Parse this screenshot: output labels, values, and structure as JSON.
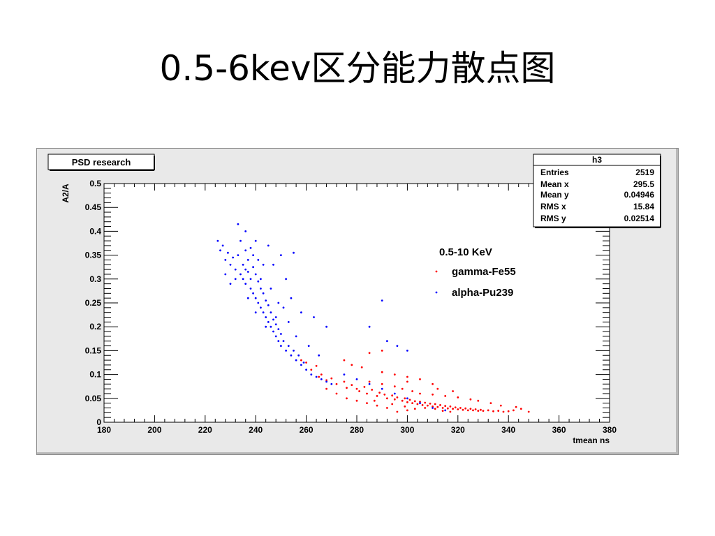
{
  "slide_title": "0.5-6kev区分能力散点图",
  "chart_data": {
    "type": "scatter",
    "title": "PSD research",
    "xlabel": "tmean ns",
    "ylabel": "A2/A",
    "xlim": [
      180,
      380
    ],
    "ylim": [
      0,
      0.5
    ],
    "x_ticks": [
      "180",
      "200",
      "220",
      "240",
      "260",
      "280",
      "300",
      "320",
      "340",
      "360",
      "380"
    ],
    "y_ticks": [
      "0",
      "0.05",
      "0.1",
      "0.15",
      "0.2",
      "0.25",
      "0.3",
      "0.35",
      "0.4",
      "0.45",
      "0.5"
    ],
    "grid": false,
    "legend": {
      "placement": "top-right",
      "header": "0.5-10 KeV",
      "entries": [
        {
          "label": "gamma-Fe55",
          "color": "#ff0000"
        },
        {
          "label": "alpha-Pu239",
          "color": "#0000ff"
        }
      ]
    },
    "stats_box": {
      "name": "h3",
      "rows": [
        {
          "label": "Entries",
          "value": "2519"
        },
        {
          "label": "Mean x",
          "value": "295.5"
        },
        {
          "label": "Mean y",
          "value": "0.04946"
        },
        {
          "label": "RMS x",
          "value": "15.84"
        },
        {
          "label": "RMS y",
          "value": "0.02514"
        }
      ]
    },
    "series": [
      {
        "name": "gamma-Fe55",
        "color": "#ff0000",
        "points": [
          [
            262,
            0.11
          ],
          [
            265,
            0.095
          ],
          [
            268,
            0.088
          ],
          [
            270,
            0.092
          ],
          [
            272,
            0.08
          ],
          [
            275,
            0.085
          ],
          [
            276,
            0.072
          ],
          [
            278,
            0.078
          ],
          [
            280,
            0.07
          ],
          [
            281,
            0.065
          ],
          [
            283,
            0.074
          ],
          [
            284,
            0.06
          ],
          [
            286,
            0.068
          ],
          [
            288,
            0.055
          ],
          [
            289,
            0.062
          ],
          [
            291,
            0.058
          ],
          [
            292,
            0.05
          ],
          [
            294,
            0.056
          ],
          [
            295,
            0.048
          ],
          [
            296,
            0.052
          ],
          [
            298,
            0.045
          ],
          [
            299,
            0.05
          ],
          [
            300,
            0.042
          ],
          [
            301,
            0.047
          ],
          [
            302,
            0.04
          ],
          [
            303,
            0.044
          ],
          [
            304,
            0.038
          ],
          [
            305,
            0.043
          ],
          [
            306,
            0.036
          ],
          [
            307,
            0.041
          ],
          [
            308,
            0.035
          ],
          [
            309,
            0.039
          ],
          [
            310,
            0.033
          ],
          [
            311,
            0.038
          ],
          [
            312,
            0.032
          ],
          [
            313,
            0.036
          ],
          [
            314,
            0.03
          ],
          [
            315,
            0.034
          ],
          [
            316,
            0.029
          ],
          [
            317,
            0.033
          ],
          [
            318,
            0.028
          ],
          [
            319,
            0.031
          ],
          [
            320,
            0.027
          ],
          [
            321,
            0.03
          ],
          [
            322,
            0.026
          ],
          [
            323,
            0.029
          ],
          [
            324,
            0.025
          ],
          [
            325,
            0.028
          ],
          [
            326,
            0.025
          ],
          [
            327,
            0.027
          ],
          [
            328,
            0.024
          ],
          [
            329,
            0.026
          ],
          [
            330,
            0.024
          ],
          [
            332,
            0.025
          ],
          [
            334,
            0.023
          ],
          [
            336,
            0.024
          ],
          [
            338,
            0.022
          ],
          [
            340,
            0.023
          ],
          [
            342,
            0.025
          ],
          [
            345,
            0.028
          ],
          [
            348,
            0.022
          ],
          [
            285,
            0.085
          ],
          [
            290,
            0.08
          ],
          [
            295,
            0.075
          ],
          [
            298,
            0.07
          ],
          [
            302,
            0.065
          ],
          [
            305,
            0.06
          ],
          [
            310,
            0.058
          ],
          [
            315,
            0.055
          ],
          [
            320,
            0.052
          ],
          [
            325,
            0.048
          ],
          [
            300,
            0.025
          ],
          [
            296,
            0.022
          ],
          [
            292,
            0.03
          ],
          [
            288,
            0.035
          ],
          [
            284,
            0.04
          ],
          [
            280,
            0.045
          ],
          [
            276,
            0.05
          ],
          [
            272,
            0.06
          ],
          [
            268,
            0.07
          ],
          [
            290,
            0.105
          ],
          [
            295,
            0.1
          ],
          [
            300,
            0.095
          ],
          [
            305,
            0.09
          ],
          [
            310,
            0.08
          ],
          [
            278,
            0.12
          ],
          [
            282,
            0.115
          ],
          [
            275,
            0.13
          ],
          [
            285,
            0.145
          ],
          [
            290,
            0.15
          ],
          [
            300,
            0.085
          ],
          [
            312,
            0.07
          ],
          [
            318,
            0.065
          ],
          [
            328,
            0.045
          ],
          [
            333,
            0.04
          ],
          [
            337,
            0.035
          ],
          [
            343,
            0.032
          ],
          [
            260,
            0.125
          ],
          [
            258,
            0.13
          ],
          [
            264,
            0.118
          ],
          [
            266,
            0.1
          ],
          [
            307,
            0.03
          ],
          [
            311,
            0.028
          ],
          [
            314,
            0.024
          ],
          [
            317,
            0.022
          ],
          [
            303,
            0.028
          ],
          [
            299,
            0.033
          ],
          [
            294,
            0.038
          ],
          [
            287,
            0.045
          ]
        ]
      },
      {
        "name": "alpha-Pu239",
        "color": "#0000ff",
        "points": [
          [
            225,
            0.38
          ],
          [
            226,
            0.36
          ],
          [
            227,
            0.37
          ],
          [
            228,
            0.34
          ],
          [
            229,
            0.355
          ],
          [
            230,
            0.33
          ],
          [
            231,
            0.345
          ],
          [
            232,
            0.32
          ],
          [
            233,
            0.35
          ],
          [
            234,
            0.31
          ],
          [
            234,
            0.38
          ],
          [
            235,
            0.33
          ],
          [
            235,
            0.3
          ],
          [
            236,
            0.36
          ],
          [
            236,
            0.29
          ],
          [
            237,
            0.34
          ],
          [
            237,
            0.315
          ],
          [
            238,
            0.3
          ],
          [
            238,
            0.28
          ],
          [
            239,
            0.325
          ],
          [
            239,
            0.27
          ],
          [
            240,
            0.31
          ],
          [
            240,
            0.26
          ],
          [
            241,
            0.295
          ],
          [
            241,
            0.25
          ],
          [
            242,
            0.28
          ],
          [
            242,
            0.24
          ],
          [
            243,
            0.27
          ],
          [
            243,
            0.23
          ],
          [
            244,
            0.255
          ],
          [
            244,
            0.22
          ],
          [
            245,
            0.245
          ],
          [
            245,
            0.21
          ],
          [
            246,
            0.23
          ],
          [
            246,
            0.2
          ],
          [
            247,
            0.215
          ],
          [
            247,
            0.19
          ],
          [
            248,
            0.205
          ],
          [
            248,
            0.18
          ],
          [
            249,
            0.195
          ],
          [
            249,
            0.17
          ],
          [
            250,
            0.185
          ],
          [
            250,
            0.16
          ],
          [
            251,
            0.17
          ],
          [
            252,
            0.15
          ],
          [
            253,
            0.16
          ],
          [
            254,
            0.14
          ],
          [
            255,
            0.15
          ],
          [
            256,
            0.13
          ],
          [
            257,
            0.14
          ],
          [
            258,
            0.12
          ],
          [
            259,
            0.125
          ],
          [
            260,
            0.11
          ],
          [
            262,
            0.1
          ],
          [
            264,
            0.095
          ],
          [
            266,
            0.09
          ],
          [
            268,
            0.085
          ],
          [
            270,
            0.08
          ],
          [
            233,
            0.415
          ],
          [
            236,
            0.4
          ],
          [
            240,
            0.38
          ],
          [
            245,
            0.37
          ],
          [
            250,
            0.35
          ],
          [
            255,
            0.355
          ],
          [
            247,
            0.33
          ],
          [
            252,
            0.3
          ],
          [
            258,
            0.23
          ],
          [
            263,
            0.22
          ],
          [
            268,
            0.2
          ],
          [
            285,
            0.2
          ],
          [
            290,
            0.255
          ],
          [
            292,
            0.17
          ],
          [
            296,
            0.16
          ],
          [
            300,
            0.15
          ],
          [
            275,
            0.1
          ],
          [
            280,
            0.09
          ],
          [
            285,
            0.08
          ],
          [
            290,
            0.07
          ],
          [
            295,
            0.06
          ],
          [
            300,
            0.05
          ],
          [
            305,
            0.04
          ],
          [
            310,
            0.03
          ],
          [
            315,
            0.025
          ],
          [
            232,
            0.3
          ],
          [
            230,
            0.29
          ],
          [
            228,
            0.31
          ],
          [
            239,
            0.35
          ],
          [
            241,
            0.34
          ],
          [
            243,
            0.33
          ],
          [
            237,
            0.26
          ],
          [
            240,
            0.23
          ],
          [
            244,
            0.2
          ],
          [
            248,
            0.22
          ],
          [
            251,
            0.24
          ],
          [
            254,
            0.26
          ],
          [
            238,
            0.365
          ],
          [
            236,
            0.32
          ],
          [
            242,
            0.3
          ],
          [
            246,
            0.28
          ],
          [
            249,
            0.25
          ],
          [
            253,
            0.21
          ],
          [
            256,
            0.18
          ],
          [
            261,
            0.16
          ],
          [
            265,
            0.14
          ]
        ]
      }
    ]
  }
}
